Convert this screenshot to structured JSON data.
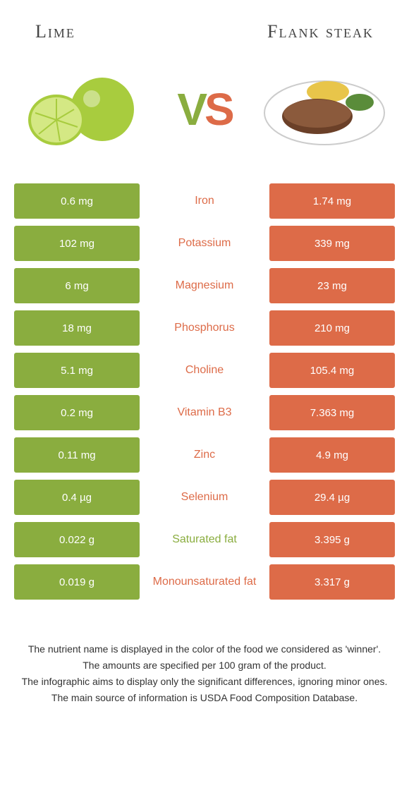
{
  "colors": {
    "left": "#8aad3f",
    "right": "#dd6b48",
    "text": "#333333",
    "background": "#ffffff"
  },
  "foods": {
    "left": {
      "name": "Lime"
    },
    "right": {
      "name": "Flank steak"
    }
  },
  "vs_label": {
    "v": "V",
    "s": "S"
  },
  "type": "comparison-table",
  "rows": [
    {
      "nutrient": "Iron",
      "left": "0.6 mg",
      "right": "1.74 mg",
      "winner": "right"
    },
    {
      "nutrient": "Potassium",
      "left": "102 mg",
      "right": "339 mg",
      "winner": "right"
    },
    {
      "nutrient": "Magnesium",
      "left": "6 mg",
      "right": "23 mg",
      "winner": "right"
    },
    {
      "nutrient": "Phosphorus",
      "left": "18 mg",
      "right": "210 mg",
      "winner": "right"
    },
    {
      "nutrient": "Choline",
      "left": "5.1 mg",
      "right": "105.4 mg",
      "winner": "right"
    },
    {
      "nutrient": "Vitamin B3",
      "left": "0.2 mg",
      "right": "7.363 mg",
      "winner": "right"
    },
    {
      "nutrient": "Zinc",
      "left": "0.11 mg",
      "right": "4.9 mg",
      "winner": "right"
    },
    {
      "nutrient": "Selenium",
      "left": "0.4 µg",
      "right": "29.4 µg",
      "winner": "right"
    },
    {
      "nutrient": "Saturated fat",
      "left": "0.022 g",
      "right": "3.395 g",
      "winner": "left"
    },
    {
      "nutrient": "Monounsaturated fat",
      "left": "0.019 g",
      "right": "3.317 g",
      "winner": "right"
    }
  ],
  "notes": [
    "The nutrient name is displayed in the color of the food we considered as 'winner'.",
    "The amounts are specified per 100 gram of the product.",
    "The infographic aims to display only the significant differences, ignoring minor ones.",
    "The main source of information is USDA Food Composition Database."
  ]
}
